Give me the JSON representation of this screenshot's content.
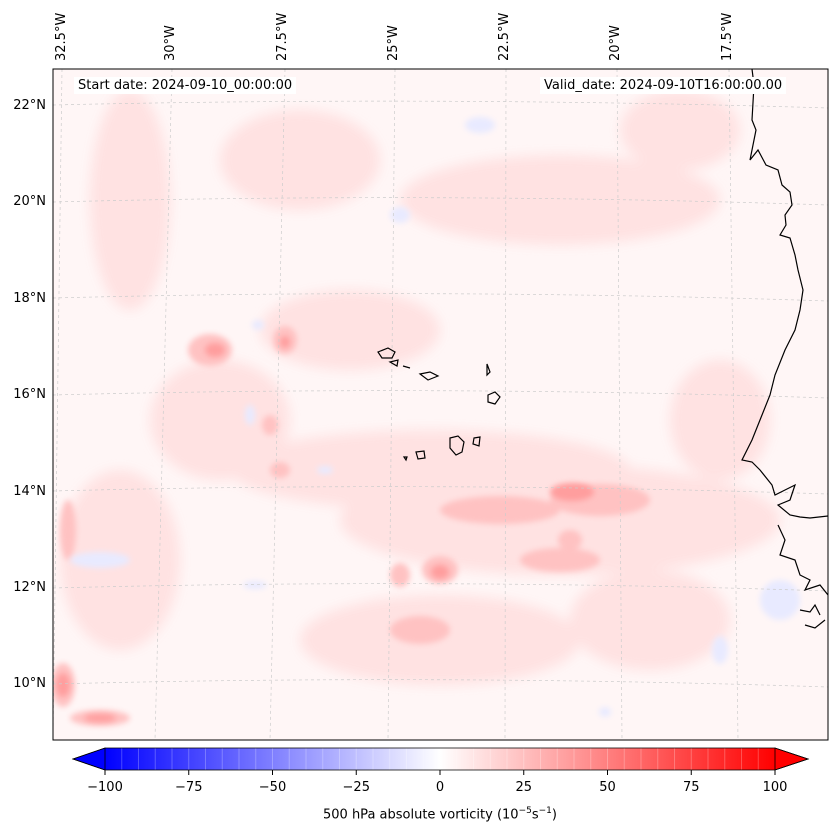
{
  "header": {
    "start_date": "Start date: 2024-09-10_00:00:00",
    "valid_date": "Valid_date: 2024-09-10T16:00:00.00"
  },
  "axes": {
    "lat_labels": [
      "22°N",
      "20°N",
      "18°N",
      "16°N",
      "14°N",
      "12°N",
      "10°N"
    ],
    "lon_labels": [
      "32.5°W",
      "30°W",
      "27.5°W",
      "25°W",
      "22.5°W",
      "20°W",
      "17.5°W"
    ]
  },
  "colorbar": {
    "label_prefix": "500 hPa absolute vorticity (10",
    "label_exp1": "−5",
    "label_mid": "s",
    "label_exp2": "−1",
    "label_suffix": ")",
    "ticks": [
      "−100",
      "−75",
      "−50",
      "−25",
      "0",
      "25",
      "50",
      "75",
      "100"
    ],
    "vmin": -100,
    "vmax": 100,
    "colors": {
      "low": "#0000ff",
      "mid": "#ffffff",
      "high": "#ff0000"
    }
  },
  "features": {
    "coastline": "africa-coast",
    "islands": "cape-verde-islands"
  }
}
